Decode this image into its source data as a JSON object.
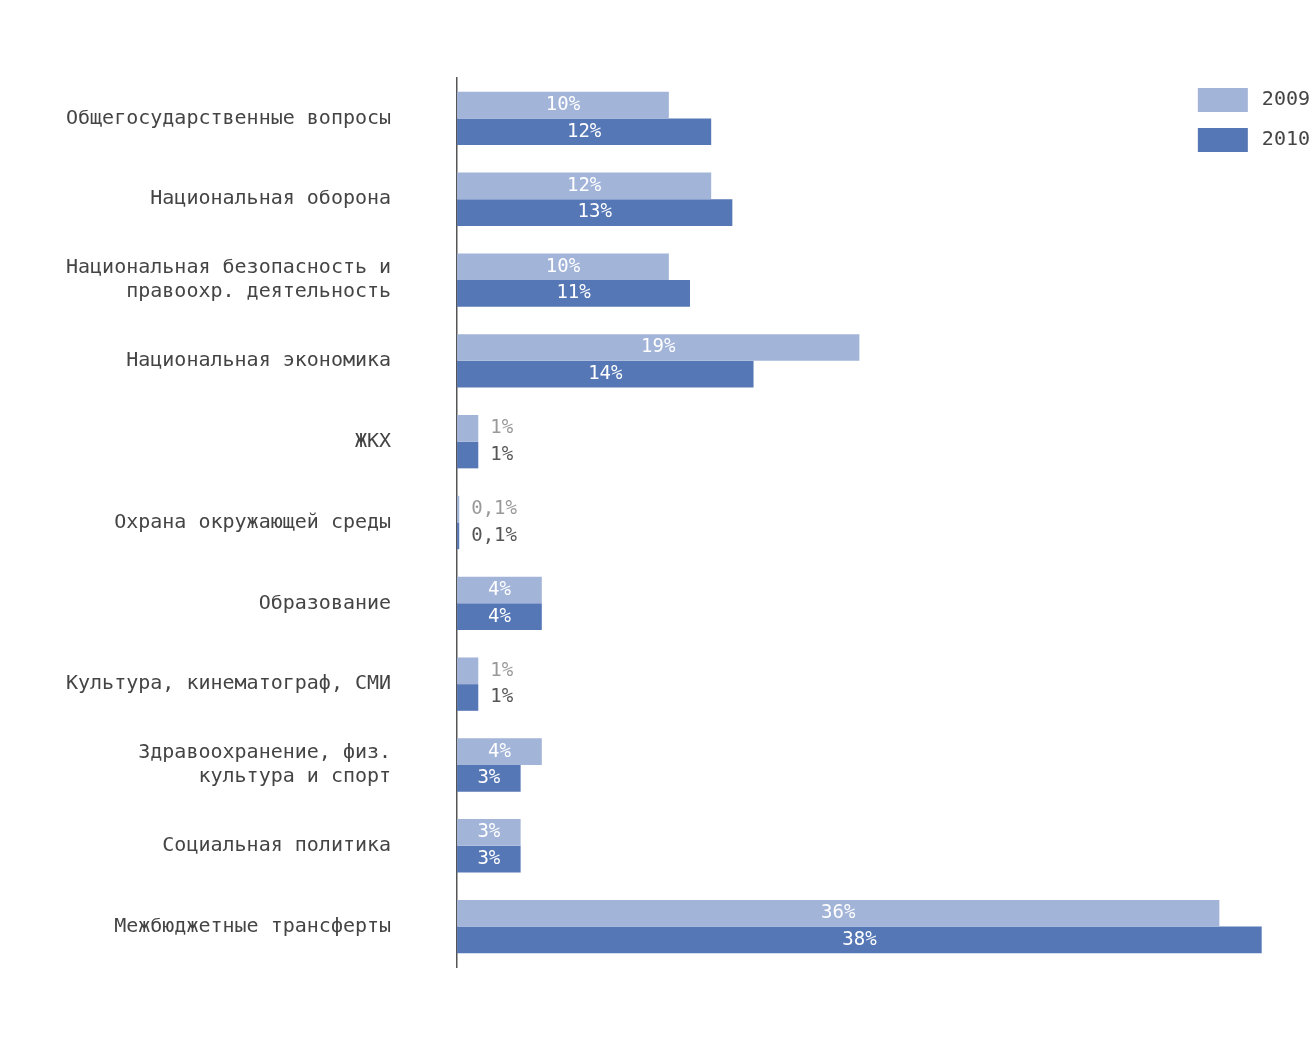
{
  "chart_data": {
    "type": "bar",
    "orientation": "horizontal",
    "tick_labels": "y",
    "legend": "top right",
    "categories": [
      "Общегосударственные вопросы",
      "Национальная оборона",
      "Национальная безопасность и\nправоохр. деятельность",
      "Национальная экономика",
      "ЖКХ",
      "Охрана окружающей среды",
      "Образование",
      "Культура, кинематограф, СМИ",
      "Здравоохранение, физ.\nкультура и спорт",
      "Социальная политика",
      "Межбюджетные трансферты"
    ],
    "series": [
      {
        "name": "2009",
        "color": "#a3b4d9",
        "values": [
          10,
          12,
          10,
          19,
          1,
          0.1,
          4,
          1,
          4,
          3,
          36
        ],
        "value_labels": [
          "10%",
          "12%",
          "10%",
          "19%",
          "1%",
          "0,1%",
          "4%",
          "1%",
          "4%",
          "3%",
          "36%"
        ]
      },
      {
        "name": "2010",
        "color": "#5677b6",
        "values": [
          12,
          13,
          11,
          14,
          1,
          0.1,
          4,
          1,
          3,
          3,
          38
        ],
        "value_labels": [
          "12%",
          "13%",
          "11%",
          "14%",
          "1%",
          "0,1%",
          "4%",
          "1%",
          "3%",
          "3%",
          "38%"
        ]
      }
    ]
  }
}
